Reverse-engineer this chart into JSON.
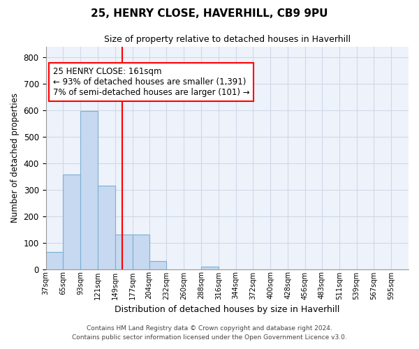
{
  "title": "25, HENRY CLOSE, HAVERHILL, CB9 9PU",
  "subtitle": "Size of property relative to detached houses in Haverhill",
  "xlabel": "Distribution of detached houses by size in Haverhill",
  "ylabel": "Number of detached properties",
  "bar_edges": [
    37,
    65,
    93,
    121,
    149,
    177,
    204,
    232,
    260,
    288,
    316,
    344,
    372,
    400,
    428,
    456,
    483,
    511,
    539,
    567,
    595
  ],
  "bar_heights": [
    65,
    357,
    596,
    315,
    130,
    130,
    30,
    0,
    0,
    10,
    0,
    0,
    0,
    0,
    0,
    0,
    0,
    0,
    0,
    0,
    0
  ],
  "bar_color": "#c6d9f0",
  "bar_edgecolor": "#7bafd4",
  "property_line_x": 161,
  "property_line_color": "red",
  "annotation_line1": "25 HENRY CLOSE: 161sqm",
  "annotation_line2": "← 93% of detached houses are smaller (1,391)",
  "annotation_line3": "7% of semi-detached houses are larger (101) →",
  "annotation_box_color": "white",
  "annotation_box_edgecolor": "red",
  "ylim": [
    0,
    840
  ],
  "yticks": [
    0,
    100,
    200,
    300,
    400,
    500,
    600,
    700,
    800
  ],
  "grid_color": "#d0d8e8",
  "bg_color": "#eef2fa",
  "footnote1": "Contains HM Land Registry data © Crown copyright and database right 2024.",
  "footnote2": "Contains public sector information licensed under the Open Government Licence v3.0.",
  "tick_labels": [
    "37sqm",
    "65sqm",
    "93sqm",
    "121sqm",
    "149sqm",
    "177sqm",
    "204sqm",
    "232sqm",
    "260sqm",
    "288sqm",
    "316sqm",
    "344sqm",
    "372sqm",
    "400sqm",
    "428sqm",
    "456sqm",
    "483sqm",
    "511sqm",
    "539sqm",
    "567sqm",
    "595sqm"
  ],
  "bin_width": 28
}
